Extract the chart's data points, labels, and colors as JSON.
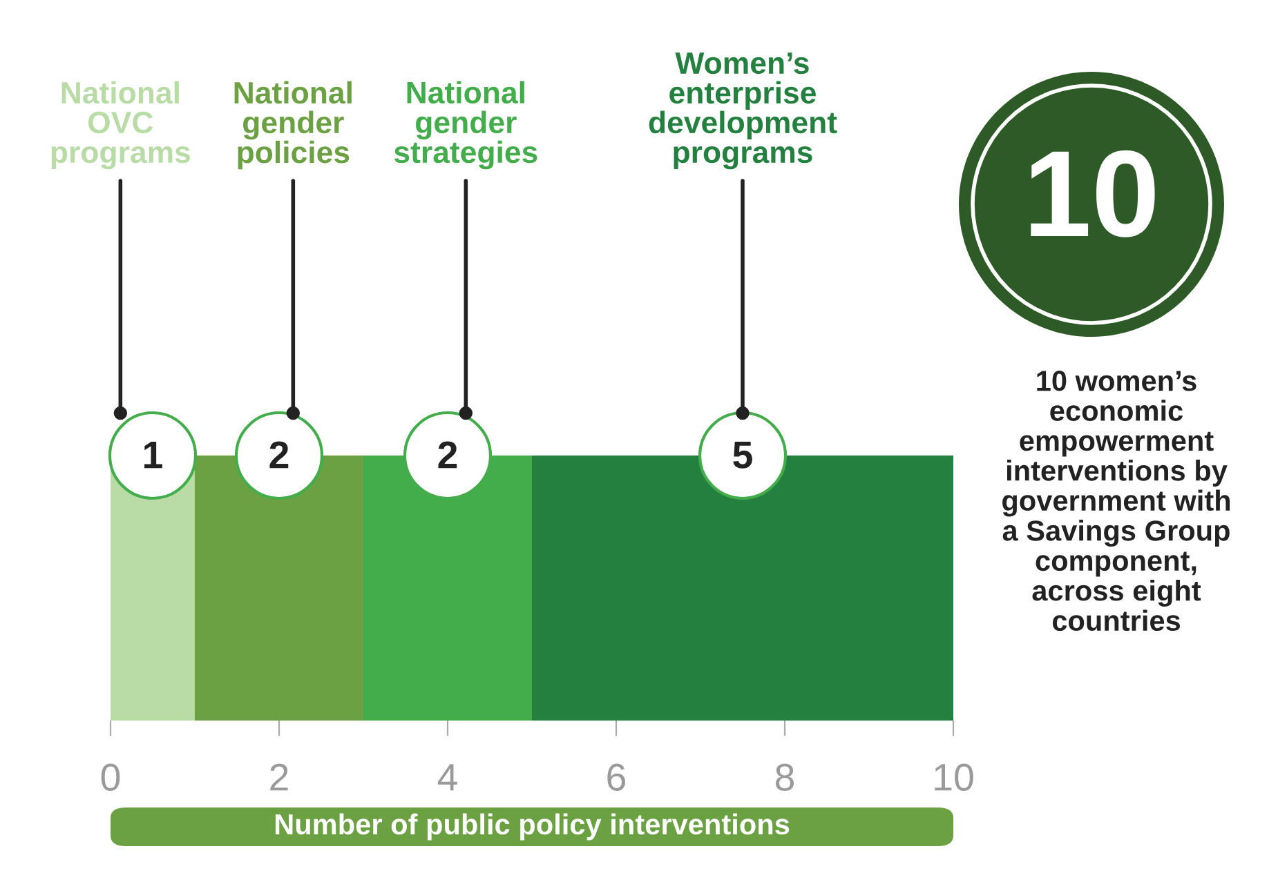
{
  "chart_data": {
    "type": "bar",
    "orientation": "horizontal",
    "stacked": true,
    "categories": [
      null
    ],
    "series": [
      {
        "name": "National\nOVC\nprograms",
        "color": "#b9dca7",
        "values": [
          1
        ]
      },
      {
        "name": "National\ngender\npolicies",
        "color": "#6ba142",
        "values": [
          2
        ]
      },
      {
        "name": "National\ngender\nstrategies",
        "color": "#43ad4b",
        "values": [
          2
        ]
      },
      {
        "name": "Women’s\nenterprise\ndevelopment\nprograms",
        "color": "#23803e",
        "values": [
          5
        ]
      }
    ],
    "xlim": [
      0,
      10
    ],
    "xticks": [
      0,
      2,
      4,
      6,
      8,
      10
    ],
    "xlabel": "Number of public policy interventions",
    "data_labels": true,
    "legend": false,
    "grid": false,
    "annotations": [
      "10",
      "10 women’s\neconomic\nempowerment\ninterventions by\ngovernment with\na Savings Group\ncomponent,\nacross eight\ncountries"
    ]
  }
}
